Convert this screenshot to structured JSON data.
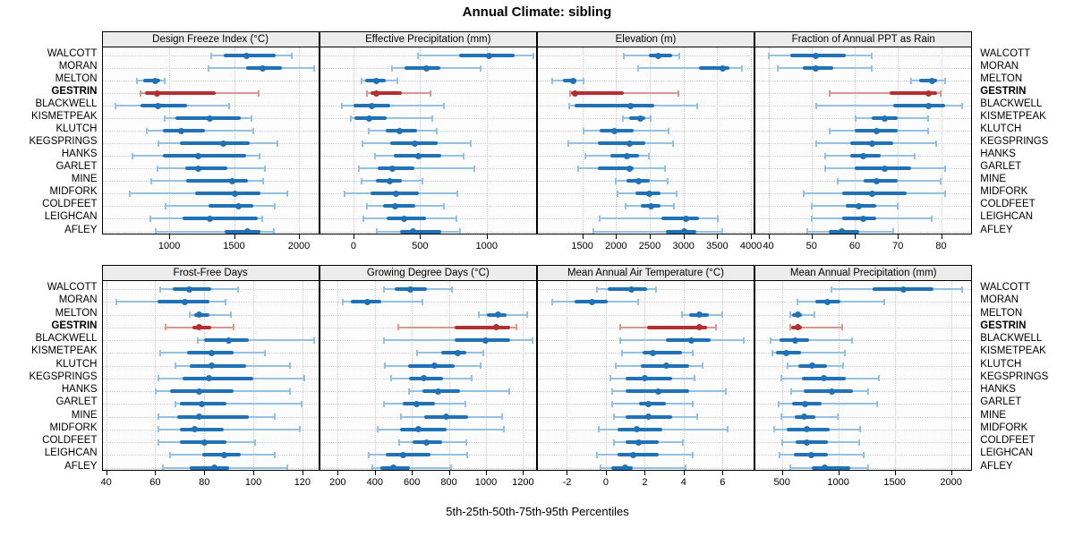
{
  "title": "Annual Climate: sibling",
  "caption": "5th-25th-50th-75th-95th Percentiles",
  "highlight_station": "GESTRIN",
  "colors": {
    "blue_dark": "#2171b5",
    "blue_light": "#94c1df",
    "red_dark": "#b23030",
    "red_light": "#d89892",
    "strip_bg": "#ececec",
    "panel_bg": "#fcfcfc",
    "grid": "#c8c8c8",
    "border": "#000000"
  },
  "stations": [
    "WALCOTT",
    "MORAN",
    "MELTON",
    "GESTRIN",
    "BLACKWELL",
    "KISMETPEAK",
    "KLUTCH",
    "KEGSPRINGS",
    "HANKS",
    "GARLET",
    "MINE",
    "MIDFORK",
    "COLDFEET",
    "LEIGHCAN",
    "AFLEY"
  ],
  "chart_data": {
    "type": "dotplot-percentile-intervals",
    "percentiles": [
      5,
      25,
      50,
      75,
      95
    ],
    "layout": {
      "rows": 2,
      "cols": 4,
      "grid": "dotted",
      "legend": "none"
    },
    "panels": [
      {
        "title": "Design Freeze Index (°C)",
        "xlim": [
          485,
          2150
        ],
        "ticks": [
          1000,
          1500,
          2000
        ],
        "values": [
          [
            1320,
            1420,
            1595,
            1820,
            1950
          ],
          [
            1300,
            1595,
            1720,
            1870,
            2120
          ],
          [
            750,
            800,
            890,
            930,
            965
          ],
          [
            775,
            810,
            905,
            1360,
            1690
          ],
          [
            585,
            775,
            915,
            1140,
            1465
          ],
          [
            960,
            1050,
            1310,
            1550,
            1635
          ],
          [
            820,
            950,
            1090,
            1275,
            1655
          ],
          [
            910,
            1080,
            1415,
            1620,
            1840
          ],
          [
            710,
            950,
            1225,
            1595,
            1700
          ],
          [
            905,
            1125,
            1225,
            1450,
            1740
          ],
          [
            855,
            1130,
            1485,
            1605,
            1725
          ],
          [
            690,
            1200,
            1505,
            1700,
            1915
          ],
          [
            965,
            1300,
            1535,
            1645,
            1820
          ],
          [
            850,
            1100,
            1310,
            1680,
            1720
          ],
          [
            890,
            1430,
            1605,
            1700,
            1810
          ]
        ]
      },
      {
        "title": "Effective Precipitation (mm)",
        "xlim": [
          -250,
          1370
        ],
        "ticks": [
          0,
          500,
          1000
        ],
        "values": [
          [
            480,
            790,
            1020,
            1210,
            1355
          ],
          [
            285,
            385,
            545,
            650,
            955
          ],
          [
            55,
            90,
            170,
            240,
            335
          ],
          [
            100,
            125,
            175,
            360,
            580
          ],
          [
            -90,
            0,
            140,
            275,
            680
          ],
          [
            -25,
            10,
            115,
            250,
            595
          ],
          [
            110,
            240,
            345,
            475,
            630
          ],
          [
            65,
            275,
            460,
            635,
            885
          ],
          [
            160,
            305,
            490,
            660,
            830
          ],
          [
            35,
            180,
            295,
            455,
            910
          ],
          [
            55,
            170,
            275,
            365,
            520
          ],
          [
            -70,
            125,
            320,
            490,
            785
          ],
          [
            100,
            225,
            315,
            465,
            680
          ],
          [
            70,
            250,
            380,
            545,
            775
          ],
          [
            170,
            350,
            450,
            660,
            805
          ]
        ]
      },
      {
        "title": "Elevation (m)",
        "xlim": [
          840,
          4040
        ],
        "ticks": [
          1500,
          2000,
          2500,
          3000,
          3500,
          4000
        ],
        "values": [
          [
            2110,
            2480,
            2625,
            2835,
            2950
          ],
          [
            2320,
            3230,
            3580,
            3680,
            3875
          ],
          [
            1050,
            1210,
            1365,
            1415,
            1520
          ],
          [
            1310,
            1335,
            1395,
            2110,
            2930
          ],
          [
            1305,
            1385,
            2220,
            2570,
            3205
          ],
          [
            2090,
            2195,
            2365,
            2440,
            2525
          ],
          [
            1505,
            1760,
            1970,
            2265,
            2790
          ],
          [
            1285,
            1735,
            2195,
            2440,
            2855
          ],
          [
            1540,
            1910,
            2160,
            2340,
            2495
          ],
          [
            1430,
            1725,
            2195,
            2265,
            2730
          ],
          [
            1985,
            2160,
            2340,
            2505,
            2775
          ],
          [
            2015,
            2285,
            2495,
            2660,
            2910
          ],
          [
            2130,
            2365,
            2525,
            2660,
            2865
          ],
          [
            1750,
            2670,
            3040,
            3230,
            3520
          ],
          [
            1660,
            2745,
            3010,
            3195,
            3580
          ]
        ]
      },
      {
        "title": "Fraction of Annual PPT as Rain",
        "xlim": [
          37,
          87
        ],
        "ticks": [
          40,
          50,
          60,
          70,
          80
        ],
        "values": [
          [
            40,
            45,
            51,
            58,
            64
          ],
          [
            42,
            48,
            51,
            55,
            64
          ],
          [
            73,
            75,
            78,
            79,
            81
          ],
          [
            54,
            68,
            77,
            79,
            80
          ],
          [
            51,
            69,
            77,
            81,
            85
          ],
          [
            60,
            64,
            67,
            70,
            77
          ],
          [
            54,
            60,
            65,
            70,
            77
          ],
          [
            51,
            59,
            64,
            69,
            79
          ],
          [
            53,
            59,
            62,
            66,
            74
          ],
          [
            53,
            60,
            67,
            73,
            81
          ],
          [
            56,
            62,
            65,
            70,
            80
          ],
          [
            48,
            57,
            64,
            72,
            81
          ],
          [
            50,
            58,
            61,
            65,
            70
          ],
          [
            50,
            57,
            62,
            65,
            78
          ],
          [
            49,
            54,
            57,
            61,
            69
          ]
        ]
      },
      {
        "title": "Frost-Free Days",
        "xlim": [
          38.5,
          126.5
        ],
        "ticks": [
          40,
          60,
          80,
          100,
          120
        ],
        "values": [
          [
            62,
            67,
            74,
            83,
            94
          ],
          [
            44,
            61,
            72,
            82,
            89
          ],
          [
            74,
            76,
            78,
            82,
            91
          ],
          [
            64,
            75,
            78,
            83,
            92
          ],
          [
            77,
            80,
            90,
            98,
            125
          ],
          [
            62,
            73,
            83,
            92,
            105
          ],
          [
            68,
            74,
            83,
            97,
            115
          ],
          [
            61,
            71,
            82,
            100,
            121
          ],
          [
            60,
            66,
            78,
            92,
            115
          ],
          [
            68,
            70,
            79,
            89,
            120
          ],
          [
            61,
            69,
            78,
            98,
            109
          ],
          [
            61,
            70,
            76,
            88,
            119
          ],
          [
            61,
            70,
            80,
            89,
            101
          ],
          [
            66,
            79,
            88,
            95,
            109
          ],
          [
            63,
            74,
            84,
            90,
            114
          ]
        ]
      },
      {
        "title": "Growing Degree Days (°C)",
        "xlim": [
          105,
          1270
        ],
        "ticks": [
          200,
          400,
          600,
          800,
          1000,
          1200
        ],
        "values": [
          [
            445,
            505,
            590,
            680,
            820
          ],
          [
            225,
            270,
            360,
            435,
            660
          ],
          [
            960,
            1005,
            1065,
            1110,
            1225
          ],
          [
            525,
            830,
            1055,
            1130,
            1165
          ],
          [
            445,
            830,
            1000,
            1130,
            1255
          ],
          [
            625,
            760,
            850,
            895,
            990
          ],
          [
            450,
            580,
            720,
            830,
            975
          ],
          [
            485,
            585,
            665,
            770,
            925
          ],
          [
            580,
            655,
            740,
            860,
            1130
          ],
          [
            445,
            550,
            625,
            725,
            890
          ],
          [
            540,
            665,
            785,
            905,
            1090
          ],
          [
            415,
            535,
            635,
            790,
            1100
          ],
          [
            530,
            605,
            680,
            765,
            895
          ],
          [
            365,
            460,
            555,
            700,
            900
          ],
          [
            385,
            430,
            500,
            590,
            815
          ]
        ]
      },
      {
        "title": "Mean Annual Air Temperature (°C)",
        "xlim": [
          -3.5,
          7.6
        ],
        "ticks": [
          -2,
          0,
          2,
          4,
          6
        ],
        "values": [
          [
            -0.5,
            0.1,
            1.3,
            2.1,
            2.6
          ],
          [
            -2.8,
            -1.6,
            -0.7,
            0.1,
            1.7
          ],
          [
            3.9,
            4.3,
            4.8,
            5.3,
            6.0
          ],
          [
            0.7,
            2.1,
            4.8,
            5.2,
            5.7
          ],
          [
            0.7,
            3.1,
            4.4,
            5.4,
            7.1
          ],
          [
            0.8,
            1.9,
            2.4,
            3.9,
            4.5
          ],
          [
            0.5,
            1.8,
            3.1,
            4.3,
            5.0
          ],
          [
            0.2,
            1.0,
            2.0,
            3.4,
            4.6
          ],
          [
            0.3,
            1.0,
            2.7,
            4.3,
            6.2
          ],
          [
            0.3,
            1.7,
            2.2,
            3.1,
            4.5
          ],
          [
            0.4,
            1.0,
            2.2,
            3.4,
            4.7
          ],
          [
            -0.4,
            0.6,
            1.6,
            2.9,
            6.3
          ],
          [
            0.4,
            1.0,
            1.7,
            2.7,
            4.0
          ],
          [
            -0.5,
            0.6,
            1.4,
            2.7,
            4.5
          ],
          [
            -0.3,
            0.3,
            1.0,
            1.4,
            4.1
          ]
        ]
      },
      {
        "title": "Mean Annual Precipitation (mm)",
        "xlim": [
          265,
          2180
        ],
        "ticks": [
          500,
          1000,
          1500,
          2000
        ],
        "values": [
          [
            935,
            1305,
            1575,
            1845,
            2105
          ],
          [
            635,
            795,
            905,
            1020,
            1410
          ],
          [
            570,
            590,
            640,
            680,
            795
          ],
          [
            570,
            580,
            645,
            680,
            1040
          ],
          [
            395,
            480,
            620,
            740,
            1125
          ],
          [
            410,
            445,
            540,
            670,
            1060
          ],
          [
            545,
            645,
            765,
            900,
            1050
          ],
          [
            490,
            675,
            870,
            1065,
            1360
          ],
          [
            580,
            695,
            945,
            1130,
            1270
          ],
          [
            465,
            590,
            705,
            855,
            1350
          ],
          [
            490,
            615,
            695,
            795,
            995
          ],
          [
            430,
            545,
            720,
            920,
            1200
          ],
          [
            500,
            625,
            720,
            905,
            1190
          ],
          [
            475,
            605,
            760,
            910,
            1225
          ],
          [
            570,
            765,
            880,
            1105,
            1265
          ]
        ]
      }
    ]
  }
}
